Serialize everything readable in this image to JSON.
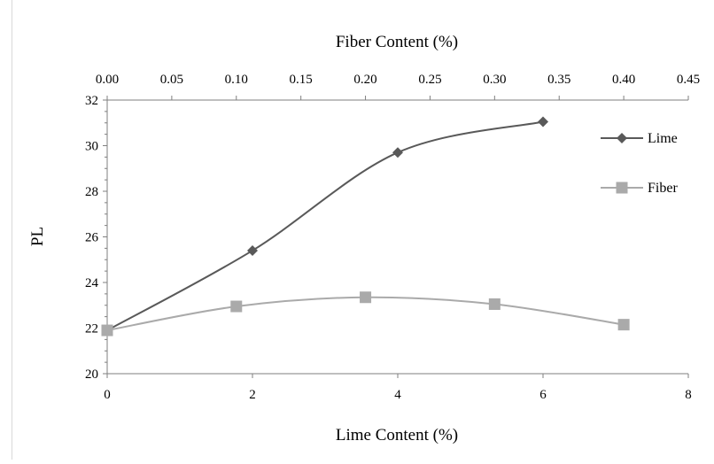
{
  "chart_data": {
    "type": "line",
    "title": "",
    "xlabel": "Lime Content (%)",
    "ylabel": "PL",
    "x2label": "Fiber Content (%)",
    "xlim": [
      0,
      8
    ],
    "x2lim": [
      0,
      0.45
    ],
    "ylim": [
      20,
      32
    ],
    "x_ticks": [
      "0",
      "2",
      "4",
      "6",
      "8"
    ],
    "x2_ticks": [
      "0.00",
      "0.05",
      "0.10",
      "0.15",
      "0.20",
      "0.25",
      "0.30",
      "0.35",
      "0.40",
      "0.45"
    ],
    "y_ticks": [
      "20",
      "22",
      "24",
      "26",
      "28",
      "30",
      "32"
    ],
    "grid": false,
    "legend_position": "right",
    "series": [
      {
        "name": "Lime",
        "axis": "bottom",
        "marker": "diamond",
        "color": "#595959",
        "x": [
          0,
          2,
          4,
          6
        ],
        "y": [
          21.9,
          25.4,
          29.7,
          31.05
        ]
      },
      {
        "name": "Fiber",
        "axis": "top",
        "marker": "square",
        "color": "#aaaaaa",
        "x": [
          0,
          0.1,
          0.2,
          0.3,
          0.4
        ],
        "y": [
          21.9,
          22.95,
          23.35,
          23.05,
          22.15
        ]
      }
    ]
  }
}
